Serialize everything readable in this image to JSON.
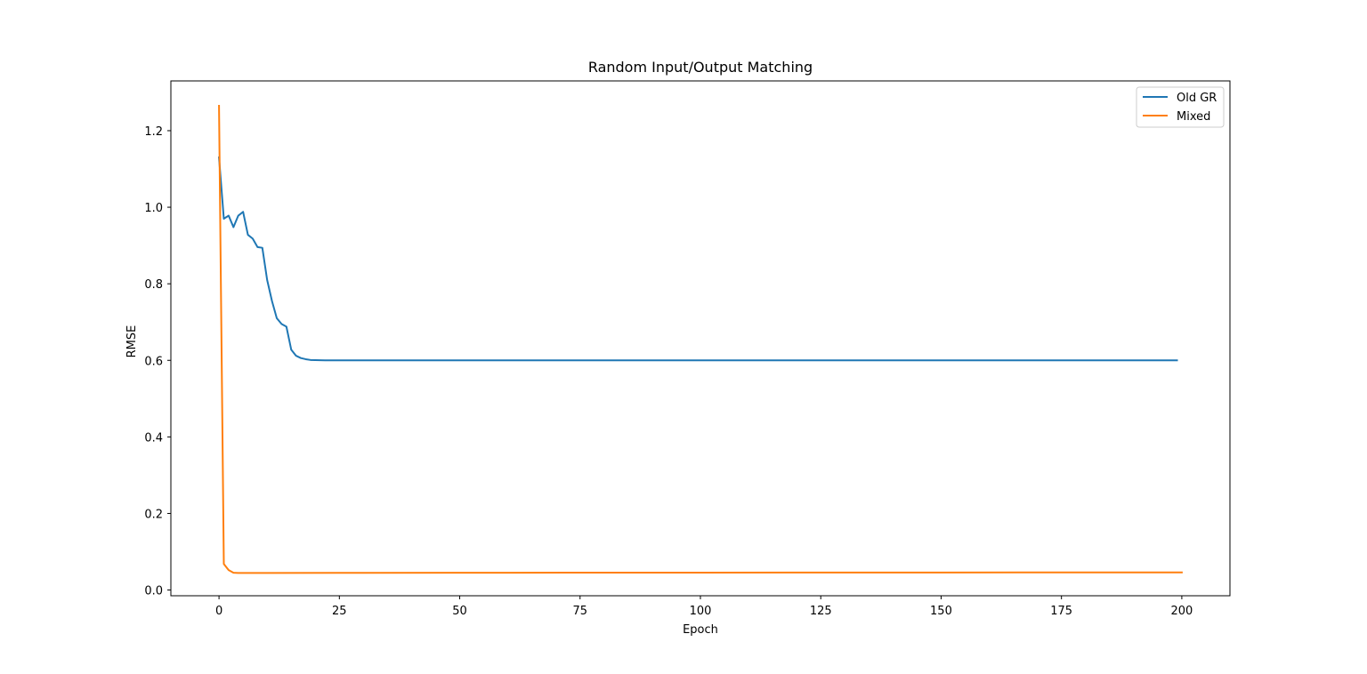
{
  "chart_data": {
    "type": "line",
    "title": "Random Input/Output Matching",
    "xlabel": "Epoch",
    "ylabel": "RMSE",
    "xlim": [
      -10,
      210
    ],
    "ylim": [
      -0.015,
      1.33
    ],
    "xticks": [
      0,
      25,
      50,
      75,
      100,
      125,
      150,
      175,
      200
    ],
    "yticks": [
      0.0,
      0.2,
      0.4,
      0.6,
      0.8,
      1.0,
      1.2
    ],
    "xtick_labels": [
      "0",
      "25",
      "50",
      "75",
      "100",
      "125",
      "150",
      "175",
      "200"
    ],
    "ytick_labels": [
      "0.0",
      "0.2",
      "0.4",
      "0.6",
      "0.8",
      "1.0",
      "1.2"
    ],
    "grid": false,
    "legend_position": "top-right",
    "series": [
      {
        "name": "Old GR",
        "color": "#1f77b4",
        "points": [
          [
            0,
            1.13
          ],
          [
            1,
            0.97
          ],
          [
            2,
            0.978
          ],
          [
            3,
            0.948
          ],
          [
            4,
            0.978
          ],
          [
            5,
            0.988
          ],
          [
            6,
            0.928
          ],
          [
            7,
            0.918
          ],
          [
            8,
            0.896
          ],
          [
            9,
            0.894
          ],
          [
            10,
            0.81
          ],
          [
            11,
            0.755
          ],
          [
            12,
            0.71
          ],
          [
            13,
            0.695
          ],
          [
            14,
            0.688
          ],
          [
            15,
            0.628
          ],
          [
            16,
            0.612
          ],
          [
            17,
            0.606
          ],
          [
            18,
            0.603
          ],
          [
            19,
            0.601
          ],
          [
            20,
            0.6005
          ],
          [
            22,
            0.6
          ],
          [
            30,
            0.6
          ],
          [
            60,
            0.6
          ],
          [
            100,
            0.6
          ],
          [
            150,
            0.6
          ],
          [
            199,
            0.6
          ]
        ]
      },
      {
        "name": "Mixed",
        "color": "#ff7f0e",
        "points": [
          [
            0,
            1.265
          ],
          [
            1,
            0.068
          ],
          [
            2,
            0.052
          ],
          [
            3,
            0.045
          ],
          [
            4,
            0.0445
          ],
          [
            10,
            0.0445
          ],
          [
            30,
            0.0448
          ],
          [
            60,
            0.0452
          ],
          [
            100,
            0.0455
          ],
          [
            150,
            0.0458
          ],
          [
            200,
            0.046
          ]
        ]
      }
    ]
  }
}
